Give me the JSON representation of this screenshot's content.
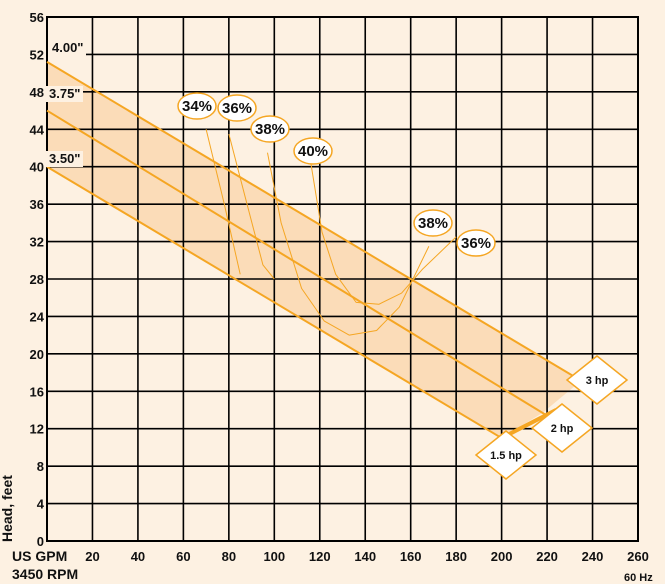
{
  "chart_data": {
    "type": "line",
    "ylabel": "Head, feet",
    "xlabel": "US GPM",
    "rpm_label": "3450 RPM",
    "hz_label": "60 Hz",
    "xlim": [
      0,
      260
    ],
    "ylim": [
      0,
      56
    ],
    "x_ticks": [
      20,
      40,
      60,
      80,
      100,
      120,
      140,
      160,
      180,
      200,
      220,
      240,
      260
    ],
    "y_ticks": [
      0,
      4,
      8,
      12,
      16,
      20,
      24,
      28,
      32,
      36,
      40,
      44,
      48,
      52,
      56
    ],
    "grid": true,
    "series": [
      {
        "name": "4.00\"",
        "x": [
          0,
          240
        ],
        "y": [
          51.2,
          16.4
        ]
      },
      {
        "name": "3.75\"",
        "x": [
          0,
          220
        ],
        "y": [
          46,
          13.4
        ]
      },
      {
        "name": "3.50\"",
        "x": [
          0,
          200
        ],
        "y": [
          40,
          11
        ]
      }
    ],
    "efficiency_labels": [
      "34%",
      "36%",
      "38%",
      "40%",
      "38%",
      "36%"
    ],
    "horsepower_labels": [
      "1.5 hp",
      "2 hp",
      "3 hp"
    ],
    "colors": {
      "curve": "#f5a623",
      "band": "#fbdcb8",
      "background": "#fdf1e2",
      "grid": "#000000"
    }
  }
}
